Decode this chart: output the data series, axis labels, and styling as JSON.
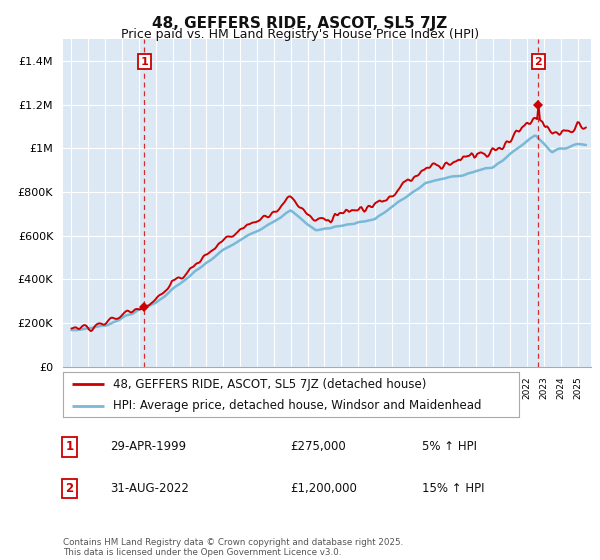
{
  "title": "48, GEFFERS RIDE, ASCOT, SL5 7JZ",
  "subtitle": "Price paid vs. HM Land Registry's House Price Index (HPI)",
  "ylabel_ticks": [
    "£0",
    "£200K",
    "£400K",
    "£600K",
    "£800K",
    "£1M",
    "£1.2M",
    "£1.4M"
  ],
  "ylim": [
    0,
    1500000
  ],
  "yticks": [
    0,
    200000,
    400000,
    600000,
    800000,
    1000000,
    1200000,
    1400000
  ],
  "sale1_year": 1999.33,
  "sale1_price": 275000,
  "sale1_label": "1",
  "sale2_year": 2022.67,
  "sale2_price": 1200000,
  "sale2_label": "2",
  "hpi_color": "#7ab8d8",
  "price_color": "#cc0000",
  "dashed_color": "#cc0000",
  "background_color": "#dce9f5",
  "plot_bg_color": "#dce9f5",
  "grid_color": "#ffffff",
  "legend_line1": "48, GEFFERS RIDE, ASCOT, SL5 7JZ (detached house)",
  "legend_line2": "HPI: Average price, detached house, Windsor and Maidenhead",
  "annotation1_date": "29-APR-1999",
  "annotation1_price": "£275,000",
  "annotation1_hpi": "5% ↑ HPI",
  "annotation2_date": "31-AUG-2022",
  "annotation2_price": "£1,200,000",
  "annotation2_hpi": "15% ↑ HPI",
  "footer": "Contains HM Land Registry data © Crown copyright and database right 2025.\nThis data is licensed under the Open Government Licence v3.0.",
  "title_fontsize": 11,
  "subtitle_fontsize": 9,
  "tick_fontsize": 8,
  "legend_fontsize": 8.5,
  "annotation_fontsize": 8.5
}
